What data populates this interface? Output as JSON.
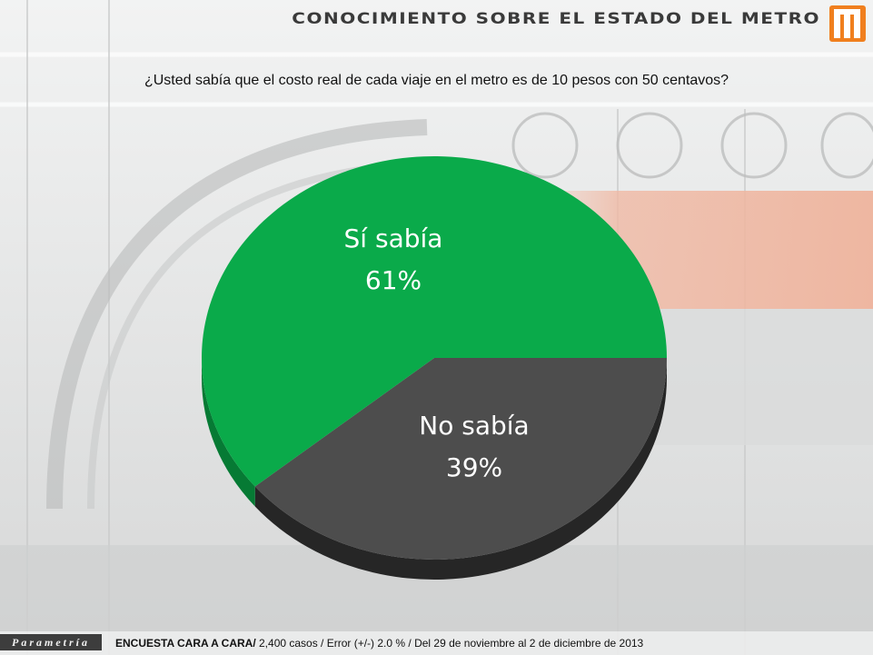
{
  "header": {
    "title": "CONOCIMIENTO SOBRE EL ESTADO DEL METRO",
    "logo_icon": "metro-m-logo-icon",
    "logo_color": "#f07f1e"
  },
  "question": "¿Usted sabía que el costo real de cada viaje en el metro es de 10 pesos con 50 centavos?",
  "chart_data": {
    "type": "pie",
    "title": "",
    "slices": [
      {
        "label": "Sí sabía",
        "value": 61,
        "value_label": "61%",
        "color": "#0aaa4a",
        "side_color": "#067a34"
      },
      {
        "label": "No sabía",
        "value": 39,
        "value_label": "39%",
        "color": "#4d4d4d",
        "side_color": "#262626"
      }
    ],
    "style": "3d-tilted"
  },
  "footer": {
    "brand": "Parametría",
    "survey_bold": "ENCUESTA CARA A CARA/",
    "survey_rest": " 2,400 casos / Error (+/-) 2.0 % / Del 29 de noviembre al 2 de diciembre de 2013"
  }
}
